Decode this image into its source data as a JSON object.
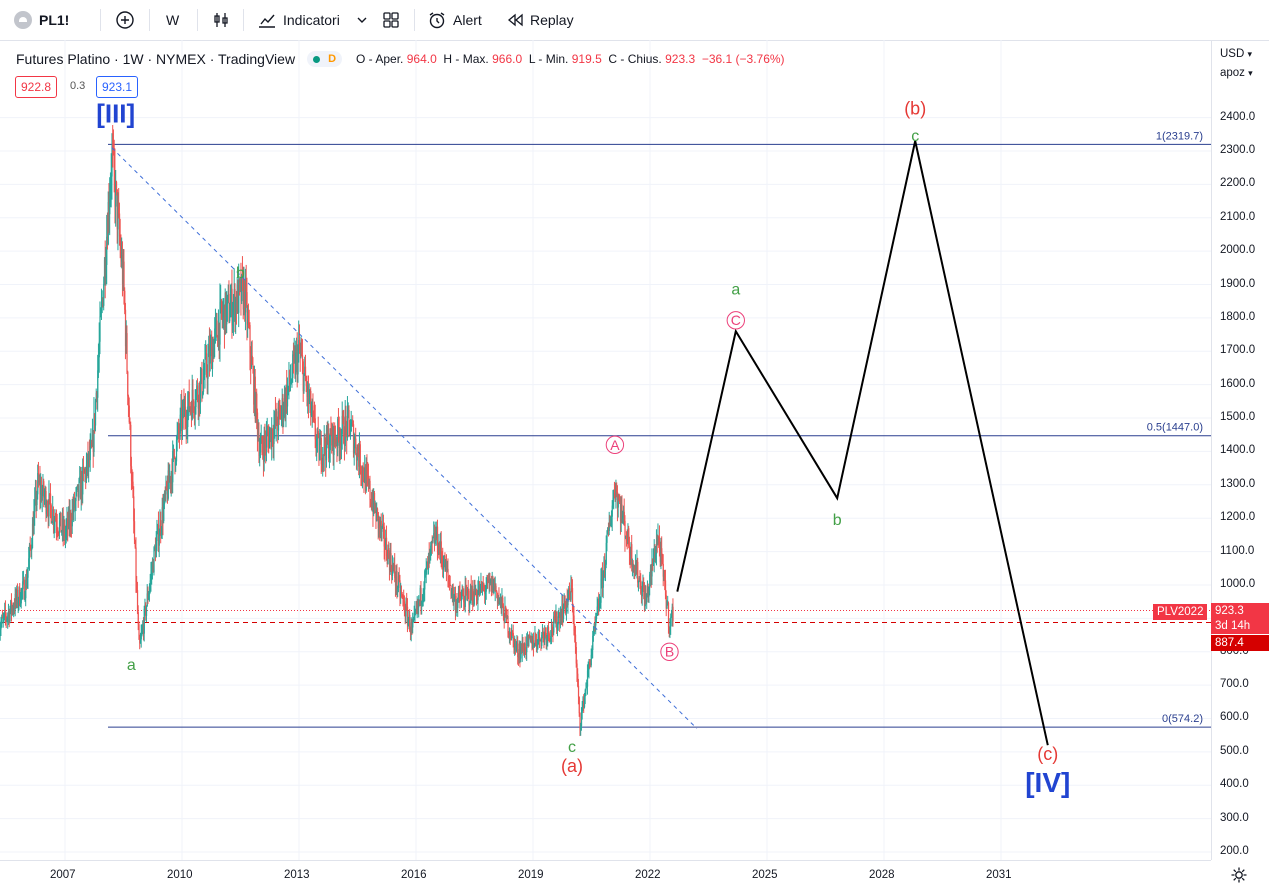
{
  "toolbar": {
    "symbol": "PL1!",
    "interval": "W",
    "indicators_label": "Indicatori",
    "alert_label": "Alert",
    "replay_label": "Replay"
  },
  "legend": {
    "title": "Futures Platino · 1W · NYMEX · TradingView",
    "badge": "D",
    "open_label": "O - Aper.",
    "open": "964.0",
    "high_label": "H - Max.",
    "high": "966.0",
    "low_label": "L - Min.",
    "low": "919.5",
    "close_label": "C - Chius.",
    "close": "923.3",
    "change": "−36.1 (−3.76%)",
    "bid": "922.8",
    "spread": "0.3",
    "ask": "923.1"
  },
  "price_axis": {
    "currency": "USD",
    "unit": "apoz",
    "ticks": [
      "2400.0",
      "2300.0",
      "2200.0",
      "2100.0",
      "2000.0",
      "1900.0",
      "1800.0",
      "1700.0",
      "1600.0",
      "1500.0",
      "1400.0",
      "1300.0",
      "1200.0",
      "1100.0",
      "1000.0",
      "900.0",
      "800.0",
      "700.0",
      "600.0",
      "500.0",
      "400.0",
      "300.0",
      "200.0"
    ],
    "last_price": "923.3",
    "countdown": "3d 14h",
    "line_price": "887.4",
    "line_label": "PLV2022"
  },
  "time_axis": {
    "ticks": [
      "2007",
      "2010",
      "2013",
      "2016",
      "2019",
      "2022",
      "2025",
      "2028",
      "2031"
    ]
  },
  "fib_levels": [
    {
      "label": "1(2319.7)",
      "price": 2319.7
    },
    {
      "label": "0.5(1447.0)",
      "price": 1447.0
    },
    {
      "label": "0(574.2)",
      "price": 574.2
    }
  ],
  "wave_labels": {
    "major_iii": "[III]",
    "major_iv": "[IV]",
    "minor_a": "(a)",
    "minor_b": "(b)",
    "minor_c": "(c)",
    "sub_a1": "a",
    "sub_b1": "b",
    "sub_c1": "c",
    "sub_a2": "a",
    "sub_b2": "b",
    "sub_c2": "c",
    "circle_a": "A",
    "circle_b": "B",
    "circle_c": "C"
  },
  "colors": {
    "up": "#26a69a",
    "down": "#ef5350",
    "fib_line": "#2a3f8f",
    "label_blue": "#2144d1",
    "label_red": "#e53935",
    "label_green": "#43a047",
    "label_pink": "#ec407a",
    "projection": "#000000"
  },
  "chart_data": {
    "type": "candlestick",
    "title": "Futures Platino · 1W · NYMEX",
    "ylim": [
      170,
      2450
    ],
    "y_unit": "USD/apoz",
    "price_path_approx": [
      {
        "date": 2005.3,
        "price": 870
      },
      {
        "date": 2006.0,
        "price": 1000
      },
      {
        "date": 2006.3,
        "price": 1300
      },
      {
        "date": 2007.0,
        "price": 1150
      },
      {
        "date": 2007.7,
        "price": 1400
      },
      {
        "date": 2008.2,
        "price": 2290
      },
      {
        "date": 2008.5,
        "price": 1900
      },
      {
        "date": 2008.9,
        "price": 800
      },
      {
        "date": 2009.3,
        "price": 1100
      },
      {
        "date": 2010.0,
        "price": 1500
      },
      {
        "date": 2010.5,
        "price": 1600
      },
      {
        "date": 2011.0,
        "price": 1800
      },
      {
        "date": 2011.6,
        "price": 1880
      },
      {
        "date": 2012.0,
        "price": 1400
      },
      {
        "date": 2012.5,
        "price": 1500
      },
      {
        "date": 2013.0,
        "price": 1700
      },
      {
        "date": 2013.5,
        "price": 1400
      },
      {
        "date": 2014.3,
        "price": 1480
      },
      {
        "date": 2015.0,
        "price": 1200
      },
      {
        "date": 2015.9,
        "price": 860
      },
      {
        "date": 2016.5,
        "price": 1150
      },
      {
        "date": 2017.0,
        "price": 950
      },
      {
        "date": 2018.0,
        "price": 1000
      },
      {
        "date": 2018.6,
        "price": 800
      },
      {
        "date": 2019.5,
        "price": 870
      },
      {
        "date": 2020.0,
        "price": 980
      },
      {
        "date": 2020.2,
        "price": 580
      },
      {
        "date": 2020.7,
        "price": 950
      },
      {
        "date": 2021.1,
        "price": 1300
      },
      {
        "date": 2021.5,
        "price": 1100
      },
      {
        "date": 2021.9,
        "price": 950
      },
      {
        "date": 2022.2,
        "price": 1150
      },
      {
        "date": 2022.5,
        "price": 880
      },
      {
        "date": 2022.6,
        "price": 923.3
      }
    ],
    "projection_path": [
      {
        "date": 2022.7,
        "price": 980
      },
      {
        "date": 2024.2,
        "price": 1760
      },
      {
        "date": 2026.8,
        "price": 1260
      },
      {
        "date": 2028.8,
        "price": 2330
      },
      {
        "date": 2032.2,
        "price": 520
      }
    ],
    "trendline": [
      {
        "date": 2008.2,
        "price": 2310
      },
      {
        "date": 2023.2,
        "price": 570
      }
    ]
  }
}
